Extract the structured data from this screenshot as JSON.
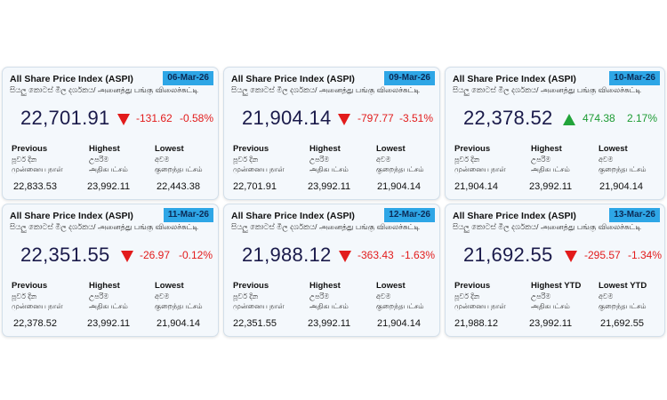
{
  "cards": [
    {
      "title": "All Share Price Index (ASPI)",
      "subtitle": "සියලු කොටස් මිල දර්ශකය/ அனைத்து பங்கு விலைச்சுட்டி",
      "date": "06-Mar-26",
      "value": "22,701.91",
      "direction": "down",
      "change": "-131.62",
      "pct": "-0.58%",
      "cols": [
        {
          "label": "Previous",
          "si": "පූර්ව දින",
          "ta": "முன்னைய நாள்",
          "value": "22,833.53"
        },
        {
          "label": "Highest",
          "si": "උපරිම",
          "ta": "அதிகபட்சம்",
          "value": "23,992.11"
        },
        {
          "label": "Lowest",
          "si": "අවම",
          "ta": "குறைந்தபட்சம்",
          "value": "22,443.38"
        }
      ]
    },
    {
      "title": "All Share Price Index (ASPI)",
      "subtitle": "සියලු කොටස් මිල දර්ශකය/ அனைத்து பங்கு விலைச்சுட்டி",
      "date": "09-Mar-26",
      "value": "21,904.14",
      "direction": "down",
      "change": "-797.77",
      "pct": "-3.51%",
      "cols": [
        {
          "label": "Previous",
          "si": "පූර්ව දින",
          "ta": "முன்னைய நாள்",
          "value": "22,701.91"
        },
        {
          "label": "Highest",
          "si": "උපරිම",
          "ta": "அதிகபட்சம்",
          "value": "23,992.11"
        },
        {
          "label": "Lowest",
          "si": "අවම",
          "ta": "குறைந்தபட்சம்",
          "value": "21,904.14"
        }
      ]
    },
    {
      "title": "All Share Price Index (ASPI)",
      "subtitle": "සියලු කොටස් මිල දර්ශකය/ அனைத்து பங்கு விலைச்சுட்டி",
      "date": "10-Mar-26",
      "value": "22,378.52",
      "direction": "up",
      "change": "474.38",
      "pct": "2.17%",
      "cols": [
        {
          "label": "Previous",
          "si": "පූර්ව දින",
          "ta": "முன்னைய நாள்",
          "value": "21,904.14"
        },
        {
          "label": "Highest",
          "si": "උපරිම",
          "ta": "அதிகபட்சம்",
          "value": "23,992.11"
        },
        {
          "label": "Lowest",
          "si": "අවම",
          "ta": "குறைந்தபட்சம்",
          "value": "21,904.14"
        }
      ]
    },
    {
      "title": "All Share Price Index (ASPI)",
      "subtitle": "සියලු කොටස් මිල දර්ශකය/ அனைத்து பங்கு விலைச்சுட்டி",
      "date": "11-Mar-26",
      "value": "22,351.55",
      "direction": "down",
      "change": "-26.97",
      "pct": "-0.12%",
      "cols": [
        {
          "label": "Previous",
          "si": "පූර්ව දින",
          "ta": "முன்னைய நாள்",
          "value": "22,378.52"
        },
        {
          "label": "Highest",
          "si": "උපරිම",
          "ta": "அதிகபட்சம்",
          "value": "23,992.11"
        },
        {
          "label": "Lowest",
          "si": "අවම",
          "ta": "குறைந்தபட்சம்",
          "value": "21,904.14"
        }
      ]
    },
    {
      "title": "All Share Price Index (ASPI)",
      "subtitle": "සියලු කොටස් මිල දර්ශකය/ அனைத்து பங்கு விலைச்சுட்டி",
      "date": "12-Mar-26",
      "value": "21,988.12",
      "direction": "down",
      "change": "-363.43",
      "pct": "-1.63%",
      "cols": [
        {
          "label": "Previous",
          "si": "පූර්ව දින",
          "ta": "முன்னைய நாள்",
          "value": "22,351.55"
        },
        {
          "label": "Highest",
          "si": "උපරිම",
          "ta": "அதிகபட்சம்",
          "value": "23,992.11"
        },
        {
          "label": "Lowest",
          "si": "අවම",
          "ta": "குறைந்தபட்சம்",
          "value": "21,904.14"
        }
      ]
    },
    {
      "title": "All Share Price Index (ASPI)",
      "subtitle": "සියලු කොටස් මිල දර්ශකය/ அனைத்து பங்கு விலைச்சுட்டி",
      "date": "13-Mar-26",
      "value": "21,692.55",
      "direction": "down",
      "change": "-295.57",
      "pct": "-1.34%",
      "cols": [
        {
          "label": "Previous",
          "si": "පූර්ව දින",
          "ta": "முன்னைய நாள்",
          "value": "21,988.12"
        },
        {
          "label": "Highest YTD",
          "si": "උපරිම",
          "ta": "அதிகபட்சம்",
          "value": "23,992.11"
        },
        {
          "label": "Lowest YTD",
          "si": "අවම",
          "ta": "குறைந்தபட்சம்",
          "value": "21,692.55"
        }
      ]
    }
  ]
}
